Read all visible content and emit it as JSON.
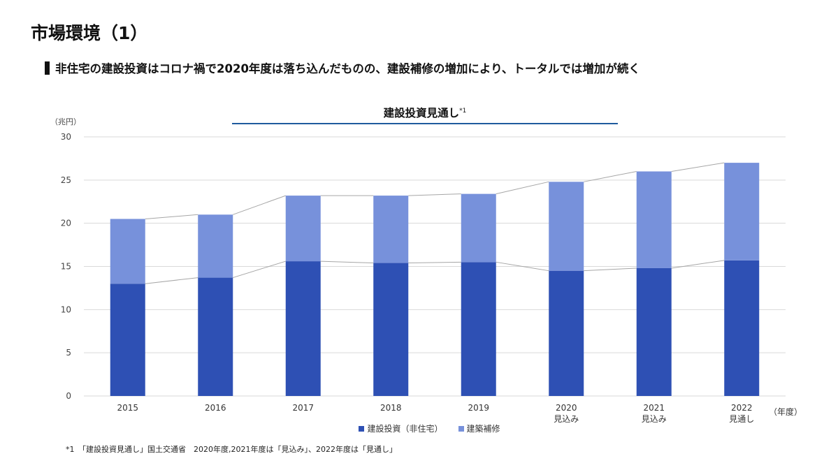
{
  "page": {
    "title": "市場環境（1）",
    "subtitle": "非住宅の建設投資はコロナ禍で2020年度は落ち込んだものの、建設補修の増加により、トータルでは増加が続く",
    "footnote": "*1　「建設投資見通し」国土交通省　2020年度,2021年度は「見込み」、2022年度は「見通し」"
  },
  "chart_data": {
    "type": "bar",
    "stacked": true,
    "title": "建設投資見通し",
    "title_note": "*1",
    "ylabel": "（兆円）",
    "xlabel": "（年度）",
    "ylim": [
      0,
      30
    ],
    "yticks": [
      0,
      5,
      10,
      15,
      20,
      25,
      30
    ],
    "grid": true,
    "legend_position": "bottom",
    "categories": [
      "2015",
      "2016",
      "2017",
      "2018",
      "2019",
      "2020",
      "2021",
      "2022"
    ],
    "category_sublabels": [
      "",
      "",
      "",
      "",
      "",
      "見込み",
      "見込み",
      "見通し"
    ],
    "series": [
      {
        "name": "建設投資（非住宅）",
        "color": "#2e50b4",
        "values": [
          13.0,
          13.7,
          15.6,
          15.4,
          15.5,
          14.5,
          14.8,
          15.7
        ]
      },
      {
        "name": "建築補修",
        "color": "#7791db",
        "values": [
          7.5,
          7.3,
          7.6,
          7.8,
          7.9,
          10.3,
          11.2,
          11.3
        ]
      }
    ],
    "series_lines": true
  }
}
